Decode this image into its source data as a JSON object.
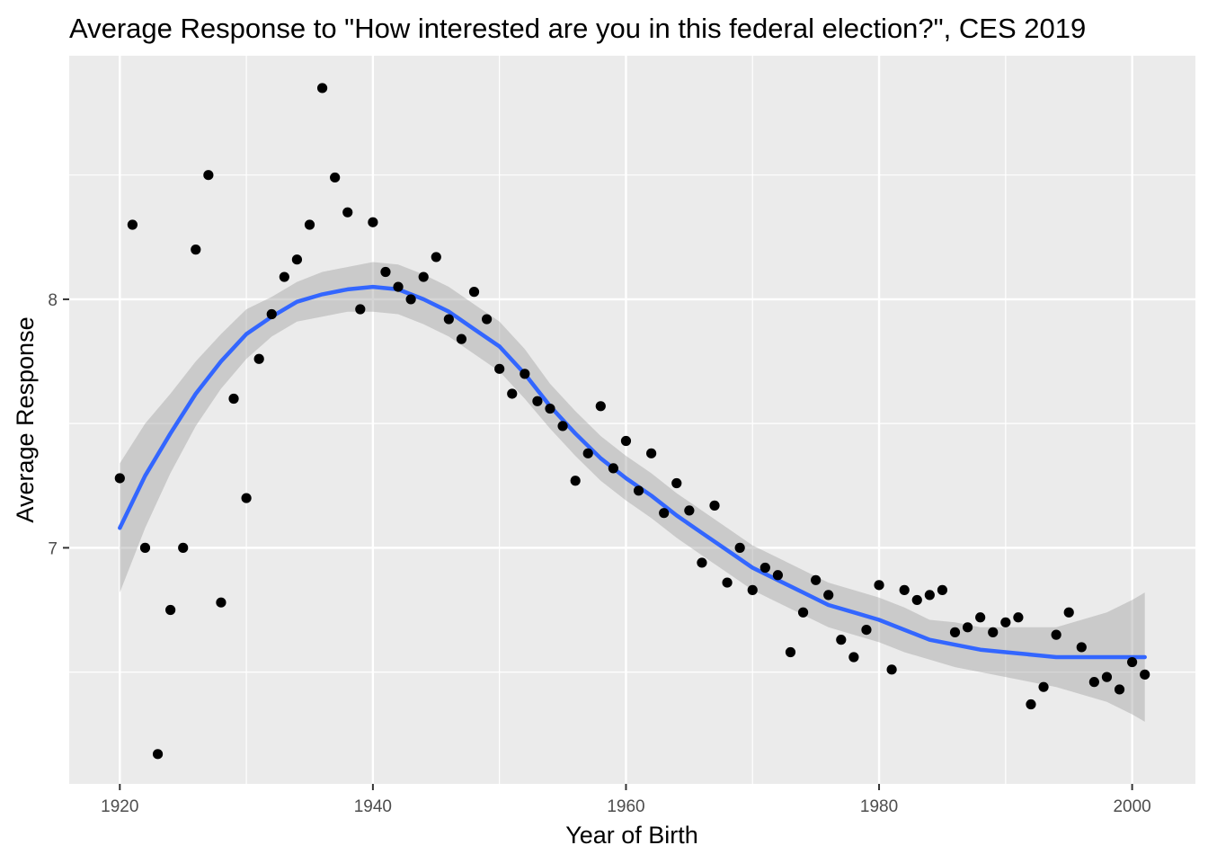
{
  "chart_data": {
    "type": "scatter",
    "title": "Average Response to \"How interested are you in this federal election?\", CES 2019",
    "xlabel": "Year of Birth",
    "ylabel": "Average Response",
    "xlim": [
      1916,
      2005
    ],
    "ylim": [
      6.05,
      8.98
    ],
    "x_ticks": [
      1920,
      1940,
      1960,
      1980,
      2000
    ],
    "y_ticks": [
      7,
      8
    ],
    "grid": true,
    "legend": "none",
    "colors": {
      "panel": "#ebebeb",
      "grid": "#ffffff",
      "points": "#000000",
      "smooth_line": "#3366ff",
      "ribbon": "#999999"
    },
    "points": {
      "x": [
        1920,
        1921,
        1922,
        1923,
        1924,
        1925,
        1926,
        1927,
        1928,
        1929,
        1930,
        1931,
        1932,
        1933,
        1934,
        1935,
        1936,
        1937,
        1938,
        1939,
        1940,
        1941,
        1942,
        1943,
        1944,
        1945,
        1946,
        1947,
        1948,
        1949,
        1950,
        1951,
        1952,
        1953,
        1954,
        1955,
        1956,
        1957,
        1958,
        1959,
        1960,
        1961,
        1962,
        1963,
        1964,
        1965,
        1966,
        1967,
        1968,
        1969,
        1970,
        1971,
        1972,
        1973,
        1974,
        1975,
        1976,
        1977,
        1978,
        1979,
        1980,
        1981,
        1982,
        1983,
        1984,
        1985,
        1986,
        1987,
        1988,
        1989,
        1990,
        1991,
        1992,
        1993,
        1994,
        1995,
        1996,
        1997,
        1998,
        1999,
        2000,
        2001
      ],
      "y": [
        7.28,
        8.3,
        7.0,
        6.17,
        6.75,
        7.0,
        8.2,
        8.5,
        6.78,
        7.6,
        7.2,
        7.76,
        7.94,
        8.09,
        8.16,
        8.3,
        8.85,
        8.49,
        8.35,
        7.96,
        8.31,
        8.11,
        8.05,
        8.0,
        8.09,
        8.17,
        7.92,
        7.84,
        8.03,
        7.92,
        7.72,
        7.62,
        7.7,
        7.59,
        7.56,
        7.49,
        7.27,
        7.38,
        7.57,
        7.32,
        7.43,
        7.23,
        7.38,
        7.14,
        7.26,
        7.15,
        6.94,
        7.17,
        6.86,
        7.0,
        6.83,
        6.92,
        6.89,
        6.58,
        6.74,
        6.87,
        6.81,
        6.63,
        6.56,
        6.67,
        6.85,
        6.51,
        6.83,
        6.79,
        6.81,
        6.83,
        6.66,
        6.68,
        6.72,
        6.66,
        6.7,
        6.72,
        6.37,
        6.44,
        6.65,
        6.74,
        6.6,
        6.46,
        6.48,
        6.43,
        6.54,
        6.49
      ]
    },
    "smooth": {
      "method": "loess",
      "x": [
        1920,
        1922,
        1924,
        1926,
        1928,
        1930,
        1932,
        1934,
        1936,
        1938,
        1940,
        1942,
        1944,
        1946,
        1948,
        1950,
        1952,
        1954,
        1956,
        1958,
        1960,
        1962,
        1964,
        1966,
        1968,
        1970,
        1972,
        1974,
        1976,
        1978,
        1980,
        1982,
        1984,
        1986,
        1988,
        1990,
        1992,
        1994,
        1996,
        1998,
        2000,
        2001
      ],
      "y": [
        7.08,
        7.29,
        7.46,
        7.62,
        7.75,
        7.86,
        7.93,
        7.99,
        8.02,
        8.04,
        8.05,
        8.04,
        8.0,
        7.95,
        7.88,
        7.81,
        7.7,
        7.57,
        7.46,
        7.36,
        7.28,
        7.21,
        7.13,
        7.06,
        6.99,
        6.92,
        6.87,
        6.82,
        6.77,
        6.74,
        6.71,
        6.67,
        6.63,
        6.61,
        6.59,
        6.58,
        6.57,
        6.56,
        6.56,
        6.56,
        6.56,
        6.56
      ],
      "lower": [
        6.82,
        7.08,
        7.3,
        7.49,
        7.64,
        7.76,
        7.85,
        7.91,
        7.93,
        7.95,
        7.95,
        7.94,
        7.9,
        7.85,
        7.78,
        7.71,
        7.6,
        7.48,
        7.37,
        7.27,
        7.19,
        7.12,
        7.04,
        6.97,
        6.9,
        6.83,
        6.78,
        6.73,
        6.68,
        6.65,
        6.62,
        6.58,
        6.55,
        6.52,
        6.5,
        6.48,
        6.46,
        6.44,
        6.41,
        6.38,
        6.33,
        6.3
      ],
      "upper": [
        7.34,
        7.5,
        7.62,
        7.75,
        7.86,
        7.96,
        8.01,
        8.07,
        8.11,
        8.13,
        8.15,
        8.14,
        8.1,
        8.05,
        7.98,
        7.91,
        7.8,
        7.66,
        7.55,
        7.45,
        7.37,
        7.3,
        7.22,
        7.15,
        7.08,
        7.01,
        6.96,
        6.91,
        6.86,
        6.83,
        6.8,
        6.76,
        6.71,
        6.7,
        6.68,
        6.68,
        6.68,
        6.68,
        6.71,
        6.74,
        6.79,
        6.82
      ]
    }
  }
}
